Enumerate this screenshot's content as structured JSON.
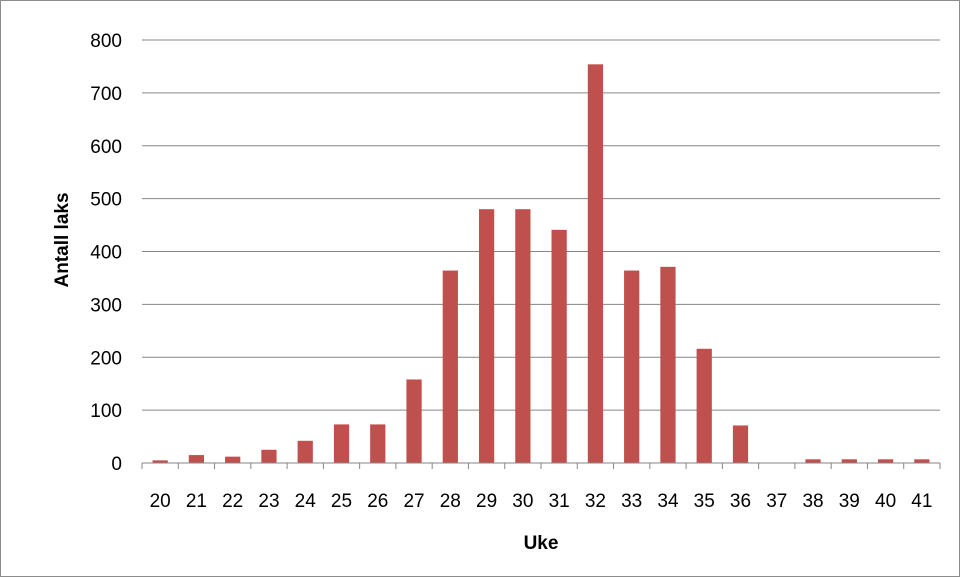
{
  "chart_data": {
    "type": "bar",
    "xlabel": "Uke",
    "ylabel": "Antall laks",
    "ylim": [
      0,
      800
    ],
    "yticks": [
      0,
      100,
      200,
      300,
      400,
      500,
      600,
      700,
      800
    ],
    "grid": true,
    "categories": [
      "20",
      "21",
      "22",
      "23",
      "24",
      "25",
      "26",
      "27",
      "28",
      "29",
      "30",
      "31",
      "32",
      "33",
      "34",
      "35",
      "36",
      "37",
      "38",
      "39",
      "40",
      "41"
    ],
    "series": [
      {
        "values": [
          5,
          15,
          12,
          25,
          42,
          73,
          73,
          158,
          364,
          480,
          480,
          441,
          754,
          364,
          371,
          216,
          71,
          0,
          7,
          7,
          7,
          7
        ],
        "color": "#c0504d"
      }
    ]
  }
}
